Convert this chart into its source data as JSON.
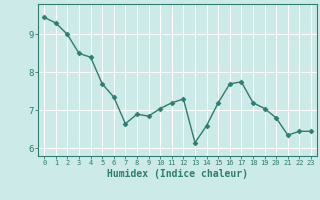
{
  "x": [
    0,
    1,
    2,
    3,
    4,
    5,
    6,
    7,
    8,
    9,
    10,
    11,
    12,
    13,
    14,
    15,
    16,
    17,
    18,
    19,
    20,
    21,
    22,
    23
  ],
  "y": [
    9.45,
    9.3,
    9.0,
    8.5,
    8.4,
    7.7,
    7.35,
    6.65,
    6.9,
    6.85,
    7.05,
    7.2,
    7.3,
    6.15,
    6.6,
    7.2,
    7.7,
    7.75,
    7.2,
    7.05,
    6.8,
    6.35,
    6.45,
    6.45
  ],
  "line_color": "#2e7d6e",
  "marker": "D",
  "marker_size": 2.5,
  "line_width": 1.0,
  "bg_color": "#cceae7",
  "grid_color": "#ffffff",
  "axis_color": "#2e7d6e",
  "tick_color": "#2e7d6e",
  "xlabel": "Humidex (Indice chaleur)",
  "xlabel_fontsize": 7,
  "xlim": [
    -0.5,
    23.5
  ],
  "ylim": [
    5.8,
    9.8
  ],
  "yticks": [
    6,
    7,
    8,
    9
  ],
  "xticks": [
    0,
    1,
    2,
    3,
    4,
    5,
    6,
    7,
    8,
    9,
    10,
    11,
    12,
    13,
    14,
    15,
    16,
    17,
    18,
    19,
    20,
    21,
    22,
    23
  ]
}
